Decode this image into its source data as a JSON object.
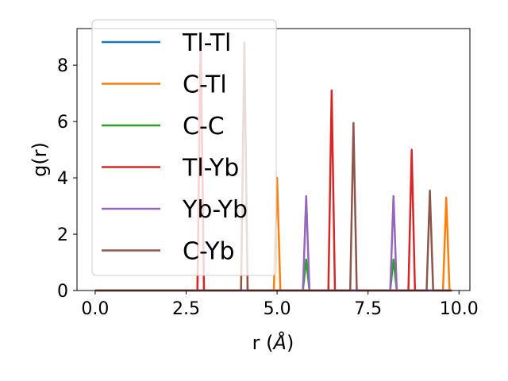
{
  "chart_data": {
    "type": "line",
    "xlabel_main": "r (",
    "xlabel_unit": "Å",
    "xlabel_end": ")",
    "ylabel": "g(r)",
    "xlim": [
      -0.5,
      10.3
    ],
    "ylim": [
      0,
      9.3
    ],
    "xticks": [
      0.0,
      2.5,
      5.0,
      7.5,
      10.0
    ],
    "xtick_labels": [
      "0.0",
      "2.5",
      "5.0",
      "7.5",
      "10.0"
    ],
    "yticks": [
      0,
      2,
      4,
      6,
      8
    ],
    "ytick_labels": [
      "0",
      "2",
      "4",
      "6",
      "8"
    ],
    "legend_position": "upper-left",
    "grid": false,
    "peak_half_width": 0.09,
    "baseline_range": [
      0,
      9.8
    ],
    "series": [
      {
        "name": "Tl-Tl",
        "color": "#1f77b4",
        "peaks": []
      },
      {
        "name": "C-Tl",
        "color": "#ff7f0e",
        "peaks": [
          [
            2.9,
            8.9
          ],
          [
            4.1,
            8.8
          ],
          [
            5.0,
            4.0
          ],
          [
            9.65,
            3.3
          ]
        ]
      },
      {
        "name": "C-C",
        "color": "#2ca02c",
        "peaks": [
          [
            5.8,
            1.1
          ],
          [
            8.2,
            1.1
          ]
        ]
      },
      {
        "name": "Tl-Yb",
        "color": "#d62728",
        "peaks": [
          [
            2.9,
            8.9
          ],
          [
            6.5,
            7.1
          ],
          [
            8.7,
            5.0
          ]
        ]
      },
      {
        "name": "Yb-Yb",
        "color": "#9467bd",
        "peaks": [
          [
            5.8,
            3.35
          ],
          [
            8.2,
            3.35
          ]
        ]
      },
      {
        "name": "C-Yb",
        "color": "#8c564b",
        "peaks": [
          [
            4.1,
            8.8
          ],
          [
            7.1,
            5.95
          ],
          [
            9.2,
            3.55
          ]
        ]
      }
    ]
  }
}
